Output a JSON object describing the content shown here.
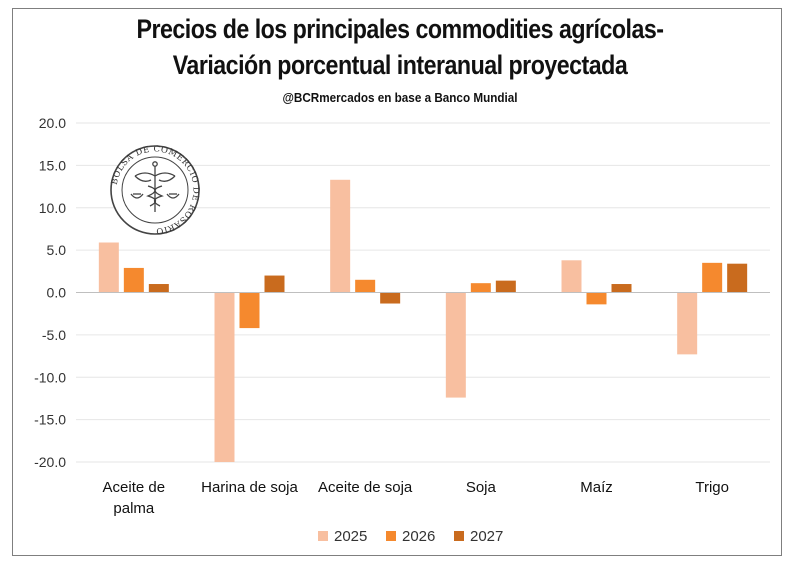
{
  "header": {
    "title_line1": "Precios de los principales commodities agrícolas-",
    "title_line2": "Variación porcentual interanual proyectada",
    "subtitle": "@BCRmercados en base a Banco Mundial"
  },
  "seal": {
    "text": "BOLSA DE COMERCIO DE ROSARIO"
  },
  "colors": {
    "2025": "#f8bfa0",
    "2026": "#f5892e",
    "2027": "#c96b1e",
    "grid": "#e6e6e6",
    "axis": "#bfbfbf"
  },
  "chart_data": {
    "type": "bar",
    "title": "Precios de los principales commodities agrícolas- Variación porcentual interanual proyectada",
    "xlabel": "",
    "ylabel": "",
    "ylim": [
      -20,
      20
    ],
    "yticks": [
      "20.0",
      "15.0",
      "10.0",
      "5.0",
      "0.0",
      "-5.0",
      "-10.0",
      "-15.0",
      "-20.0"
    ],
    "categories": [
      [
        "Aceite de",
        "palma"
      ],
      [
        "Harina de soja"
      ],
      [
        "Aceite de soja"
      ],
      [
        "Soja"
      ],
      [
        "Maíz"
      ],
      [
        "Trigo"
      ]
    ],
    "series": [
      {
        "name": "2025",
        "values": [
          5.9,
          -20.0,
          13.3,
          -12.4,
          3.8,
          -7.3
        ]
      },
      {
        "name": "2026",
        "values": [
          2.9,
          -4.2,
          1.5,
          1.1,
          -1.4,
          3.5
        ]
      },
      {
        "name": "2027",
        "values": [
          1.0,
          2.0,
          -1.3,
          1.4,
          1.0,
          3.4
        ]
      }
    ],
    "legend_position": "bottom",
    "grid": true
  }
}
